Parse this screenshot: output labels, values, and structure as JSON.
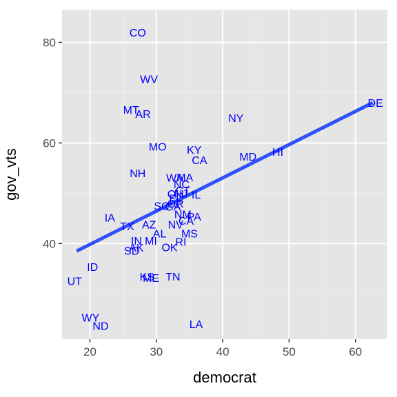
{
  "chart_data": {
    "type": "scatter",
    "xlabel": "democrat",
    "ylabel": "gov_vts",
    "xlim": [
      15.8,
      64.8
    ],
    "ylim": [
      21.0,
      86.5
    ],
    "x_ticks": [
      20,
      30,
      40,
      50,
      60
    ],
    "y_ticks": [
      40,
      60,
      80
    ],
    "x_tick_labels": [
      "20",
      "30",
      "40",
      "50",
      "60"
    ],
    "y_tick_labels": [
      "40",
      "60",
      "80"
    ],
    "grid": true,
    "panel_color": "#e5e5e5",
    "label_color": "#0000ff",
    "line_color": "#3050f8",
    "points": [
      {
        "label": "CO",
        "x": 27.2,
        "y": 82.0
      },
      {
        "label": "WV",
        "x": 28.9,
        "y": 72.7
      },
      {
        "label": "MT",
        "x": 26.2,
        "y": 66.6
      },
      {
        "label": "AR",
        "x": 28.0,
        "y": 65.8
      },
      {
        "label": "NY",
        "x": 42.0,
        "y": 65.0
      },
      {
        "label": "DE",
        "x": 63.0,
        "y": 68.0
      },
      {
        "label": "MO",
        "x": 30.2,
        "y": 59.3
      },
      {
        "label": "KY",
        "x": 35.7,
        "y": 58.7
      },
      {
        "label": "CA",
        "x": 36.5,
        "y": 56.6
      },
      {
        "label": "MD",
        "x": 43.8,
        "y": 57.3
      },
      {
        "label": "HI",
        "x": 48.3,
        "y": 58.3
      },
      {
        "label": "NH",
        "x": 27.2,
        "y": 54.0
      },
      {
        "label": "WA",
        "x": 32.8,
        "y": 53.1
      },
      {
        "label": "MA",
        "x": 34.3,
        "y": 53.2
      },
      {
        "label": "NC",
        "x": 33.8,
        "y": 51.8
      },
      {
        "label": "CT",
        "x": 34.0,
        "y": 50.6
      },
      {
        "label": "OH",
        "x": 32.9,
        "y": 49.9
      },
      {
        "label": "NJ",
        "x": 33.7,
        "y": 50.0
      },
      {
        "label": "IL",
        "x": 36.0,
        "y": 49.8
      },
      {
        "label": "FL",
        "x": 32.9,
        "y": 49.0
      },
      {
        "label": "OR",
        "x": 32.9,
        "y": 48.0
      },
      {
        "label": "SC",
        "x": 30.8,
        "y": 47.5
      },
      {
        "label": "GA",
        "x": 32.5,
        "y": 47.4
      },
      {
        "label": "NM",
        "x": 34.0,
        "y": 45.9
      },
      {
        "label": "PA",
        "x": 35.7,
        "y": 45.4
      },
      {
        "label": "IA",
        "x": 23.0,
        "y": 45.2
      },
      {
        "label": "TX",
        "x": 25.6,
        "y": 43.5
      },
      {
        "label": "AZ",
        "x": 28.9,
        "y": 43.8
      },
      {
        "label": "NV",
        "x": 32.9,
        "y": 43.8
      },
      {
        "label": "CA",
        "x": 34.5,
        "y": 44.6
      },
      {
        "label": "AL",
        "x": 30.5,
        "y": 42.0
      },
      {
        "label": "MS",
        "x": 35.0,
        "y": 42.0
      },
      {
        "label": "IN",
        "x": 27.0,
        "y": 40.6
      },
      {
        "label": "MI",
        "x": 29.2,
        "y": 40.6
      },
      {
        "label": "RI",
        "x": 33.7,
        "y": 40.4
      },
      {
        "label": "AK",
        "x": 27.0,
        "y": 39.2
      },
      {
        "label": "SD",
        "x": 26.3,
        "y": 38.6
      },
      {
        "label": "OK",
        "x": 32.0,
        "y": 39.3
      },
      {
        "label": "ID",
        "x": 20.4,
        "y": 35.4
      },
      {
        "label": "UT",
        "x": 17.7,
        "y": 32.6
      },
      {
        "label": "KS",
        "x": 28.6,
        "y": 33.5
      },
      {
        "label": "ME",
        "x": 29.2,
        "y": 33.2
      },
      {
        "label": "TN",
        "x": 32.5,
        "y": 33.5
      },
      {
        "label": "WY",
        "x": 20.1,
        "y": 25.3
      },
      {
        "label": "ND",
        "x": 21.6,
        "y": 23.7
      },
      {
        "label": "LA",
        "x": 36.0,
        "y": 24.0
      }
    ],
    "fit_line": {
      "x": [
        18.0,
        62.6
      ],
      "y": [
        38.5,
        68.0
      ]
    }
  }
}
